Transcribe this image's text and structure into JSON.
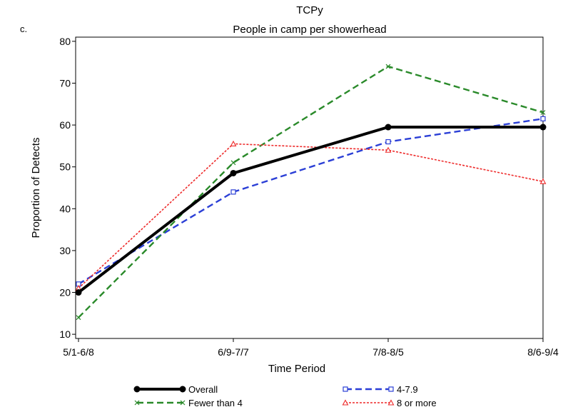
{
  "panel_label": "c.",
  "chart_data": {
    "type": "line",
    "title": "TCPy",
    "subtitle": "People in camp per showerhead",
    "xlabel": "Time Period",
    "ylabel": "Proportion of Detects",
    "categories": [
      "5/1-6/8",
      "6/9-7/7",
      "7/8-8/5",
      "8/6-9/4"
    ],
    "ylim": [
      9,
      81
    ],
    "yticks": [
      10,
      20,
      30,
      40,
      50,
      60,
      70,
      80
    ],
    "grid": false,
    "legend_position": "bottom",
    "series": [
      {
        "name": "Overall",
        "values": [
          20,
          48.5,
          59.5,
          59.5
        ],
        "color": "#000000",
        "marker": "dot",
        "style": "solid"
      },
      {
        "name": "4-7.9",
        "values": [
          22,
          44,
          56,
          61.5
        ],
        "color": "#2b3fd6",
        "marker": "square",
        "style": "dashed"
      },
      {
        "name": "Fewer than 4",
        "values": [
          14,
          51,
          74,
          63
        ],
        "color": "#2a8a2a",
        "marker": "x",
        "style": "dashed"
      },
      {
        "name": "8 or more",
        "values": [
          21,
          55.5,
          54,
          46.5
        ],
        "color": "#ee2a2a",
        "marker": "triangle",
        "style": "dotted"
      }
    ]
  }
}
